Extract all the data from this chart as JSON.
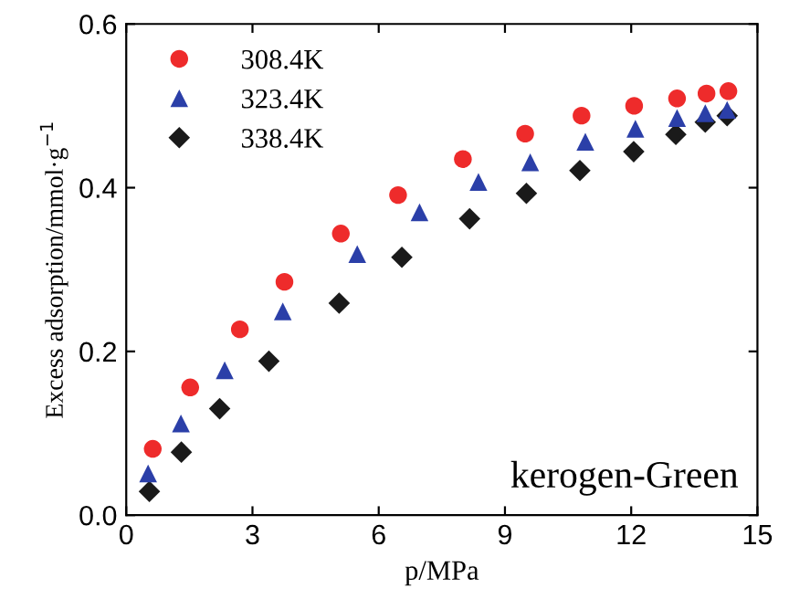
{
  "chart_data": {
    "type": "scatter",
    "xlabel": "p/MPa",
    "ylabel": "Excess adsorption/mmol·g$^{−1}$",
    "annotations": [
      "kerogen-Green"
    ],
    "xlim": [
      0,
      15
    ],
    "xticks": [
      0,
      3,
      6,
      9,
      12,
      15
    ],
    "ylim": [
      0,
      0.6
    ],
    "yticks": [
      {
        "value": 0,
        "label": "0.0"
      },
      {
        "value": 0.2,
        "label": "0.2"
      },
      {
        "value": 0.4,
        "label": "0.4"
      },
      {
        "value": 0.6,
        "label": "0.6"
      }
    ],
    "grid": false,
    "legend": "top left",
    "series": [
      {
        "name": "308.4K",
        "color": "#ee2b2b",
        "marker": "circle",
        "x": [
          0.63,
          1.52,
          2.7,
          3.76,
          5.1,
          6.46,
          8.0,
          9.48,
          10.82,
          12.07,
          13.09,
          13.79,
          14.31
        ],
        "values": [
          0.081,
          0.156,
          0.227,
          0.285,
          0.344,
          0.391,
          0.435,
          0.466,
          0.488,
          0.5,
          0.509,
          0.515,
          0.518
        ]
      },
      {
        "name": "323.4K",
        "color": "#2b3fa8",
        "marker": "triangle",
        "x": [
          0.52,
          1.3,
          2.34,
          3.72,
          5.49,
          6.97,
          8.37,
          9.6,
          10.91,
          12.1,
          13.09,
          13.76,
          14.28
        ],
        "values": [
          0.051,
          0.112,
          0.177,
          0.249,
          0.319,
          0.37,
          0.407,
          0.431,
          0.456,
          0.472,
          0.485,
          0.491,
          0.495
        ]
      },
      {
        "name": "338.4K",
        "color": "#1a1a1a",
        "marker": "diamond",
        "x": [
          0.55,
          1.31,
          2.22,
          3.39,
          5.06,
          6.55,
          8.16,
          9.51,
          10.78,
          12.06,
          13.06,
          13.76,
          14.28
        ],
        "values": [
          0.029,
          0.077,
          0.13,
          0.188,
          0.259,
          0.315,
          0.362,
          0.393,
          0.421,
          0.444,
          0.465,
          0.48,
          0.488
        ]
      }
    ]
  }
}
